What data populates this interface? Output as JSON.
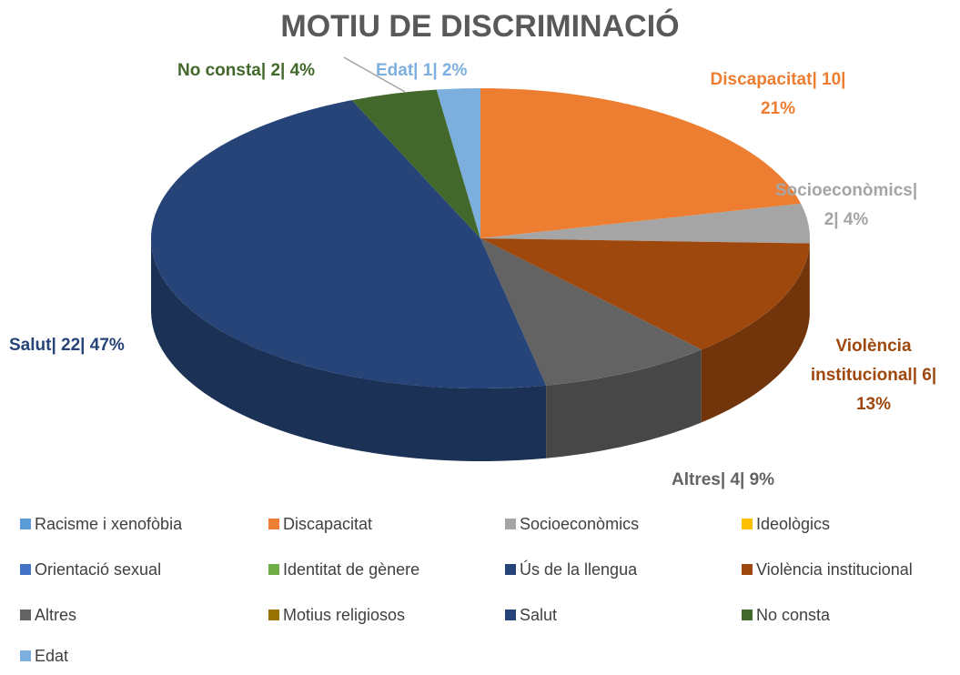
{
  "chart_data": {
    "type": "pie",
    "title": "MOTIU DE DISCRIMINACIÓ",
    "categories": [
      "Racisme i xenofòbia",
      "Discapacitat",
      "Socioeconòmics",
      "Ideològics",
      "Orientació sexual",
      "Identitat de gènere",
      "Ús de la llengua",
      "Violència institucional",
      "Altres",
      "Motius religiosos",
      "Salut",
      "No consta",
      "Edat"
    ],
    "values": [
      0,
      10,
      2,
      0,
      0,
      0,
      0,
      6,
      4,
      0,
      22,
      2,
      1
    ],
    "value_labels": [
      null,
      "Discapacitat| 10| 21%",
      "Socioeconòmics| 2| 4%",
      null,
      null,
      null,
      null,
      "Violència institucional| 6| 13%",
      "Altres| 4| 9%",
      null,
      "Salut| 22| 47%",
      "No consta| 2| 4%",
      "Edat| 1| 2%"
    ],
    "colors": [
      "#5b9bd5",
      "#ed7d31",
      "#a5a5a5",
      "#ffc000",
      "#4472c4",
      "#70ad47",
      "#264478",
      "#9e480e",
      "#636363",
      "#997300",
      "#264478",
      "#43682b",
      "#7cafdd"
    ],
    "legend": "bottom"
  }
}
